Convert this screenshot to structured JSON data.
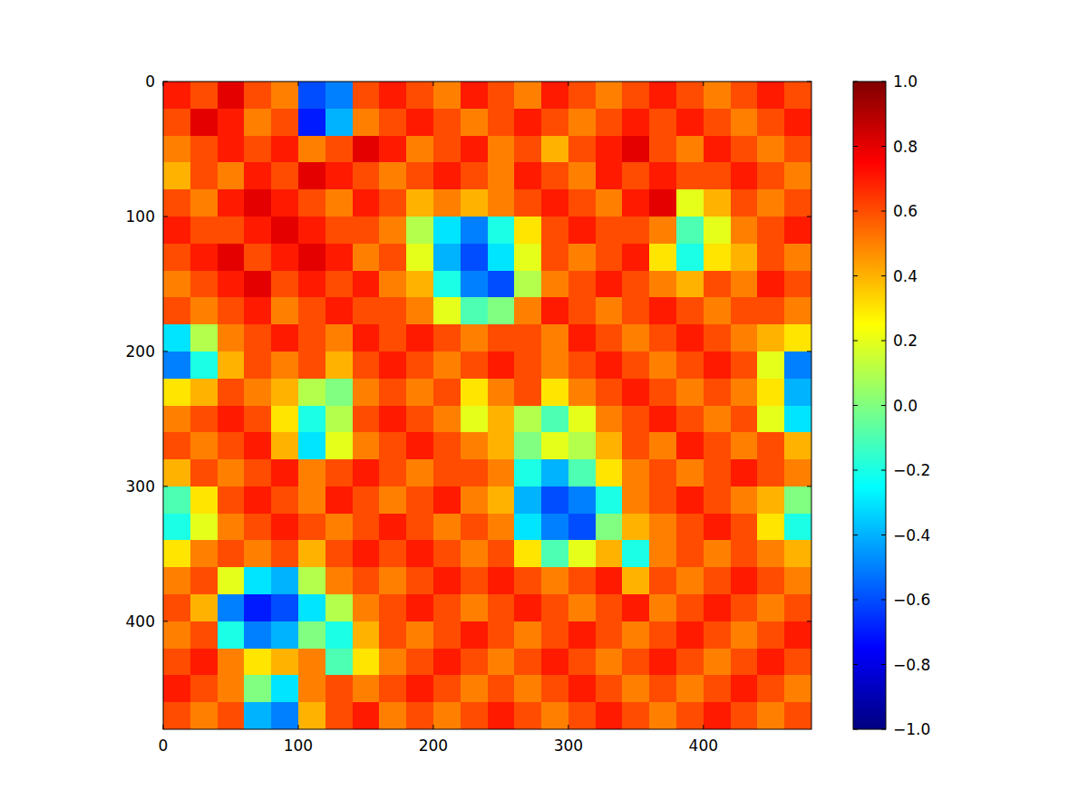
{
  "chart_data": {
    "type": "heatmap",
    "xlim": [
      0,
      480
    ],
    "ylim": [
      480,
      0
    ],
    "xticks": [
      0,
      100,
      200,
      300,
      400
    ],
    "yticks": [
      0,
      100,
      200,
      300,
      400
    ],
    "cells": [
      [
        0.7,
        0.6,
        0.8,
        0.6,
        0.5,
        -0.6,
        -0.5,
        0.6,
        0.7,
        0.6,
        0.5,
        0.7,
        0.6,
        0.5,
        0.7,
        0.6,
        0.5,
        0.6,
        0.7,
        0.6,
        0.5,
        0.6,
        0.7,
        0.6
      ],
      [
        0.6,
        0.8,
        0.7,
        0.5,
        0.6,
        -0.7,
        -0.4,
        0.5,
        0.6,
        0.7,
        0.6,
        0.5,
        0.6,
        0.7,
        0.6,
        0.5,
        0.6,
        0.7,
        0.6,
        0.7,
        0.6,
        0.5,
        0.6,
        0.7
      ],
      [
        0.5,
        0.6,
        0.7,
        0.6,
        0.7,
        0.5,
        0.6,
        0.8,
        0.7,
        0.5,
        0.6,
        0.7,
        0.5,
        0.6,
        0.4,
        0.6,
        0.7,
        0.8,
        0.6,
        0.5,
        0.7,
        0.6,
        0.5,
        0.6
      ],
      [
        0.4,
        0.6,
        0.5,
        0.7,
        0.6,
        0.8,
        0.7,
        0.6,
        0.5,
        0.6,
        0.7,
        0.6,
        0.5,
        0.7,
        0.6,
        0.5,
        0.7,
        0.6,
        0.7,
        0.6,
        0.6,
        0.7,
        0.6,
        0.5
      ],
      [
        0.6,
        0.5,
        0.7,
        0.8,
        0.7,
        0.6,
        0.5,
        0.7,
        0.6,
        0.4,
        0.5,
        0.4,
        0.5,
        0.6,
        0.7,
        0.6,
        0.5,
        0.7,
        0.8,
        0.2,
        0.4,
        0.6,
        0.5,
        0.6
      ],
      [
        0.7,
        0.6,
        0.6,
        0.7,
        0.8,
        0.7,
        0.6,
        0.6,
        0.5,
        0.1,
        -0.3,
        -0.5,
        -0.2,
        0.3,
        0.6,
        0.7,
        0.6,
        0.6,
        0.5,
        -0.1,
        0.2,
        0.5,
        0.6,
        0.7
      ],
      [
        0.6,
        0.7,
        0.8,
        0.6,
        0.7,
        0.8,
        0.7,
        0.5,
        0.6,
        0.2,
        -0.4,
        -0.6,
        -0.3,
        0.2,
        0.6,
        0.5,
        0.6,
        0.7,
        0.3,
        -0.2,
        0.3,
        0.4,
        0.6,
        0.5
      ],
      [
        0.5,
        0.6,
        0.7,
        0.8,
        0.6,
        0.7,
        0.6,
        0.7,
        0.5,
        0.4,
        -0.2,
        -0.5,
        -0.6,
        0.1,
        0.5,
        0.6,
        0.7,
        0.6,
        0.5,
        0.4,
        0.6,
        0.5,
        0.7,
        0.6
      ],
      [
        0.6,
        0.5,
        0.6,
        0.7,
        0.5,
        0.6,
        0.7,
        0.6,
        0.6,
        0.5,
        0.2,
        -0.1,
        0.0,
        0.5,
        0.7,
        0.6,
        0.5,
        0.6,
        0.7,
        0.6,
        0.5,
        0.6,
        0.6,
        0.5
      ],
      [
        -0.3,
        0.1,
        0.5,
        0.6,
        0.7,
        0.6,
        0.5,
        0.7,
        0.6,
        0.7,
        0.6,
        0.5,
        0.6,
        0.6,
        0.5,
        0.7,
        0.6,
        0.5,
        0.6,
        0.7,
        0.6,
        0.5,
        0.4,
        0.3
      ],
      [
        -0.5,
        -0.2,
        0.4,
        0.6,
        0.5,
        0.6,
        0.4,
        0.6,
        0.7,
        0.6,
        0.5,
        0.6,
        0.7,
        0.6,
        0.5,
        0.6,
        0.7,
        0.6,
        0.5,
        0.6,
        0.7,
        0.6,
        0.2,
        -0.5
      ],
      [
        0.3,
        0.4,
        0.6,
        0.5,
        0.4,
        0.1,
        0.0,
        0.5,
        0.6,
        0.5,
        0.6,
        0.3,
        0.5,
        0.6,
        0.3,
        0.5,
        0.6,
        0.7,
        0.6,
        0.5,
        0.6,
        0.5,
        0.3,
        -0.4
      ],
      [
        0.5,
        0.6,
        0.7,
        0.6,
        0.3,
        -0.2,
        0.1,
        0.6,
        0.7,
        0.6,
        0.5,
        0.2,
        0.4,
        0.1,
        -0.1,
        0.2,
        0.5,
        0.6,
        0.7,
        0.6,
        0.5,
        0.6,
        0.2,
        -0.3
      ],
      [
        0.6,
        0.5,
        0.6,
        0.7,
        0.4,
        -0.3,
        0.2,
        0.5,
        0.6,
        0.7,
        0.6,
        0.5,
        0.4,
        0.0,
        0.2,
        0.1,
        0.4,
        0.6,
        0.5,
        0.7,
        0.6,
        0.5,
        0.6,
        0.4
      ],
      [
        0.4,
        0.6,
        0.5,
        0.6,
        0.7,
        0.5,
        0.6,
        0.7,
        0.6,
        0.5,
        0.6,
        0.6,
        0.5,
        -0.2,
        -0.4,
        -0.1,
        0.3,
        0.5,
        0.6,
        0.5,
        0.6,
        0.7,
        0.6,
        0.5
      ],
      [
        -0.1,
        0.3,
        0.6,
        0.7,
        0.6,
        0.5,
        0.7,
        0.6,
        0.5,
        0.6,
        0.7,
        0.5,
        0.4,
        -0.4,
        -0.6,
        -0.5,
        -0.2,
        0.5,
        0.6,
        0.7,
        0.6,
        0.5,
        0.4,
        0.0
      ],
      [
        -0.2,
        0.2,
        0.5,
        0.6,
        0.7,
        0.6,
        0.5,
        0.6,
        0.7,
        0.6,
        0.5,
        0.6,
        0.5,
        -0.3,
        -0.5,
        -0.6,
        0.0,
        0.4,
        0.5,
        0.6,
        0.7,
        0.6,
        0.3,
        -0.2
      ],
      [
        0.3,
        0.5,
        0.6,
        0.5,
        0.6,
        0.4,
        0.6,
        0.7,
        0.6,
        0.7,
        0.6,
        0.5,
        0.6,
        0.3,
        -0.1,
        0.2,
        0.4,
        -0.2,
        0.5,
        0.6,
        0.5,
        0.6,
        0.5,
        0.4
      ],
      [
        0.5,
        0.6,
        0.2,
        -0.3,
        -0.4,
        0.1,
        0.5,
        0.6,
        0.5,
        0.6,
        0.7,
        0.6,
        0.7,
        0.6,
        0.5,
        0.6,
        0.7,
        0.4,
        0.6,
        0.5,
        0.6,
        0.7,
        0.6,
        0.5
      ],
      [
        0.6,
        0.4,
        -0.5,
        -0.7,
        -0.6,
        -0.3,
        0.1,
        0.5,
        0.6,
        0.7,
        0.6,
        0.5,
        0.6,
        0.7,
        0.6,
        0.5,
        0.6,
        0.7,
        0.5,
        0.6,
        0.7,
        0.6,
        0.5,
        0.6
      ],
      [
        0.5,
        0.6,
        -0.2,
        -0.5,
        -0.4,
        0.0,
        -0.2,
        0.4,
        0.6,
        0.5,
        0.6,
        0.7,
        0.6,
        0.5,
        0.6,
        0.7,
        0.6,
        0.5,
        0.6,
        0.7,
        0.6,
        0.5,
        0.6,
        0.7
      ],
      [
        0.6,
        0.7,
        0.5,
        0.3,
        0.4,
        0.5,
        -0.1,
        0.3,
        0.5,
        0.6,
        0.7,
        0.6,
        0.5,
        0.6,
        0.7,
        0.6,
        0.5,
        0.6,
        0.7,
        0.6,
        0.5,
        0.6,
        0.7,
        0.6
      ],
      [
        0.7,
        0.6,
        0.5,
        0.0,
        -0.3,
        0.5,
        0.6,
        0.5,
        0.6,
        0.7,
        0.6,
        0.5,
        0.6,
        0.5,
        0.6,
        0.7,
        0.6,
        0.5,
        0.6,
        0.5,
        0.6,
        0.7,
        0.6,
        0.5
      ],
      [
        0.6,
        0.5,
        0.6,
        -0.4,
        -0.5,
        0.4,
        0.6,
        0.7,
        0.5,
        0.6,
        0.5,
        0.6,
        0.7,
        0.6,
        0.5,
        0.6,
        0.7,
        0.6,
        0.5,
        0.6,
        0.7,
        0.6,
        0.5,
        0.6
      ]
    ],
    "colorbar_range": [
      -1,
      1
    ],
    "colorbar_ticks": [
      {
        "value": -1.0,
        "label": "−1.0"
      },
      {
        "value": -0.8,
        "label": "−0.8"
      },
      {
        "value": -0.6,
        "label": "−0.6"
      },
      {
        "value": -0.4,
        "label": "−0.4"
      },
      {
        "value": -0.2,
        "label": "−0.2"
      },
      {
        "value": 0.0,
        "label": "0.0"
      },
      0.2,
      0.4,
      0.6,
      0.8,
      {
        "value": 1.0,
        "label": "1.0"
      }
    ]
  }
}
